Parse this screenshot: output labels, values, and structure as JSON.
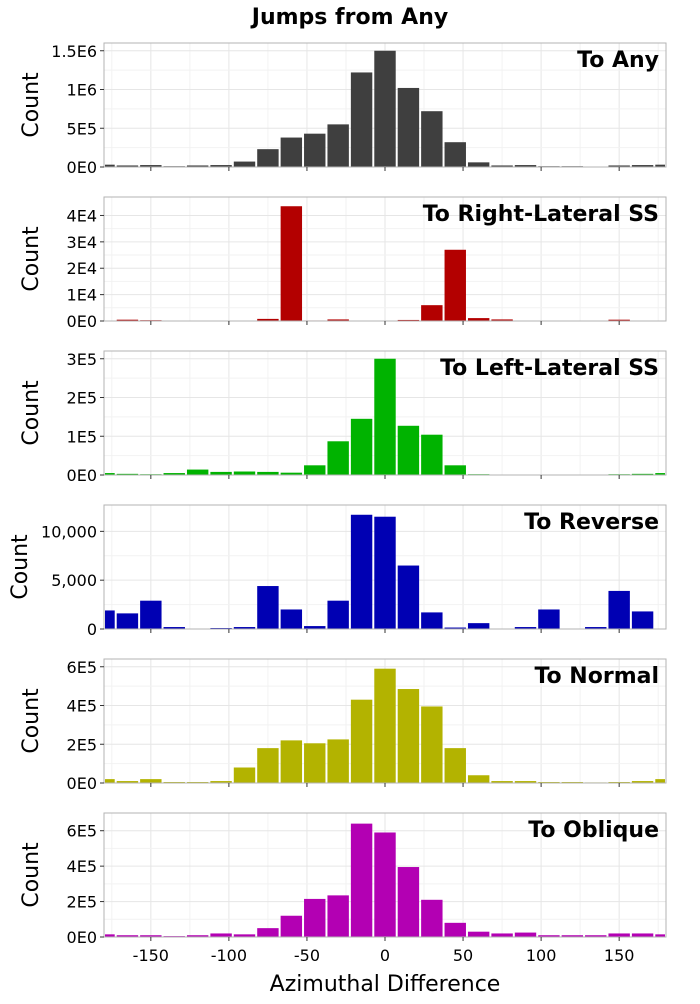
{
  "title": "Jumps from Any",
  "chart_data": [
    {
      "type": "bar",
      "title": "To Any",
      "ylabel": "Count",
      "xlabel": "",
      "color": "#3f3f3f",
      "y_ticks": [
        0,
        500000,
        1000000,
        1500000
      ],
      "y_tick_labels": [
        "0E0",
        "5E5",
        "1E6",
        "1.5E6"
      ],
      "ylim": [
        0,
        1600000
      ],
      "xlim": [
        -180,
        180
      ],
      "bin_width": 15,
      "bin_centers": [
        -180,
        -165,
        -150,
        -135,
        -120,
        -105,
        -90,
        -75,
        -60,
        -45,
        -30,
        -15,
        0,
        15,
        30,
        45,
        60,
        75,
        90,
        105,
        120,
        135,
        150,
        165,
        180
      ],
      "values": [
        30000,
        20000,
        25000,
        10000,
        20000,
        25000,
        70000,
        230000,
        380000,
        430000,
        550000,
        1220000,
        1500000,
        1020000,
        720000,
        320000,
        60000,
        20000,
        25000,
        10000,
        10000,
        5000,
        20000,
        25000,
        30000
      ]
    },
    {
      "type": "bar",
      "title": "To Right-Lateral SS",
      "ylabel": "Count",
      "xlabel": "",
      "color": "#b30000",
      "y_ticks": [
        0,
        10000,
        20000,
        30000,
        40000
      ],
      "y_tick_labels": [
        "0E0",
        "1E4",
        "2E4",
        "3E4",
        "4E4"
      ],
      "ylim": [
        0,
        47000
      ],
      "xlim": [
        -180,
        180
      ],
      "bin_width": 15,
      "bin_centers": [
        -180,
        -165,
        -150,
        -135,
        -120,
        -105,
        -90,
        -75,
        -60,
        -45,
        -30,
        -15,
        0,
        15,
        30,
        45,
        60,
        75,
        90,
        105,
        120,
        135,
        150,
        165,
        180
      ],
      "values": [
        0,
        500,
        300,
        100,
        0,
        0,
        0,
        800,
        43500,
        200,
        600,
        0,
        0,
        400,
        6000,
        27000,
        1100,
        600,
        0,
        100,
        0,
        0,
        500,
        0,
        0
      ]
    },
    {
      "type": "bar",
      "title": "To Left-Lateral SS",
      "ylabel": "Count",
      "xlabel": "",
      "color": "#00b300",
      "y_ticks": [
        0,
        100000,
        200000,
        300000
      ],
      "y_tick_labels": [
        "0E0",
        "1E5",
        "2E5",
        "3E5"
      ],
      "ylim": [
        0,
        320000
      ],
      "xlim": [
        -180,
        180
      ],
      "bin_width": 15,
      "bin_centers": [
        -180,
        -165,
        -150,
        -135,
        -120,
        -105,
        -90,
        -75,
        -60,
        -45,
        -30,
        -15,
        0,
        15,
        30,
        45,
        60,
        75,
        90,
        105,
        120,
        135,
        150,
        165,
        180
      ],
      "values": [
        5000,
        3000,
        2000,
        5000,
        14000,
        8000,
        9000,
        8000,
        6000,
        25000,
        87000,
        145000,
        300000,
        127000,
        104000,
        25000,
        2000,
        1000,
        1000,
        1000,
        500,
        500,
        2000,
        3000,
        5000
      ]
    },
    {
      "type": "bar",
      "title": "To Reverse",
      "ylabel": "Count",
      "xlabel": "",
      "color": "#0000b3",
      "y_ticks": [
        0,
        5000,
        10000
      ],
      "y_tick_labels": [
        "0",
        "5,000",
        "10,000"
      ],
      "ylim": [
        0,
        12700
      ],
      "xlim": [
        -180,
        180
      ],
      "bin_width": 15,
      "bin_centers": [
        -180,
        -165,
        -150,
        -135,
        -120,
        -105,
        -90,
        -75,
        -60,
        -45,
        -30,
        -15,
        0,
        15,
        30,
        45,
        60,
        75,
        90,
        105,
        120,
        135,
        150,
        165,
        180
      ],
      "values": [
        1900,
        1600,
        2900,
        200,
        50,
        100,
        200,
        4400,
        2000,
        300,
        2900,
        11700,
        11500,
        6500,
        1700,
        150,
        600,
        50,
        200,
        2000,
        50,
        200,
        3900,
        1800,
        0
      ]
    },
    {
      "type": "bar",
      "title": "To Normal",
      "ylabel": "Count",
      "xlabel": "",
      "color": "#b3b300",
      "y_ticks": [
        0,
        200000,
        400000,
        600000
      ],
      "y_tick_labels": [
        "0E0",
        "2E5",
        "4E5",
        "6E5"
      ],
      "ylim": [
        0,
        640000
      ],
      "xlim": [
        -180,
        180
      ],
      "bin_width": 15,
      "bin_centers": [
        -180,
        -165,
        -150,
        -135,
        -120,
        -105,
        -90,
        -75,
        -60,
        -45,
        -30,
        -15,
        0,
        15,
        30,
        45,
        60,
        75,
        90,
        105,
        120,
        135,
        150,
        165,
        180
      ],
      "values": [
        20000,
        10000,
        20000,
        5000,
        5000,
        10000,
        80000,
        180000,
        220000,
        205000,
        225000,
        430000,
        590000,
        485000,
        395000,
        180000,
        40000,
        10000,
        10000,
        5000,
        5000,
        3000,
        5000,
        10000,
        20000
      ]
    },
    {
      "type": "bar",
      "title": "To Oblique",
      "ylabel": "Count",
      "xlabel": "Azimuthal Difference",
      "color": "#b300b3",
      "y_ticks": [
        0,
        200000,
        400000,
        600000
      ],
      "y_tick_labels": [
        "0E0",
        "2E5",
        "4E5",
        "6E5"
      ],
      "ylim": [
        0,
        700000
      ],
      "xlim": [
        -180,
        180
      ],
      "x_ticks": [
        -150,
        -100,
        -50,
        0,
        50,
        100,
        150
      ],
      "bin_width": 15,
      "bin_centers": [
        -180,
        -165,
        -150,
        -135,
        -120,
        -105,
        -90,
        -75,
        -60,
        -45,
        -30,
        -15,
        0,
        15,
        30,
        45,
        60,
        75,
        90,
        105,
        120,
        135,
        150,
        165,
        180
      ],
      "values": [
        15000,
        10000,
        10000,
        5000,
        10000,
        20000,
        15000,
        50000,
        120000,
        215000,
        235000,
        640000,
        590000,
        395000,
        210000,
        80000,
        30000,
        20000,
        25000,
        10000,
        10000,
        10000,
        20000,
        20000,
        15000
      ]
    }
  ]
}
